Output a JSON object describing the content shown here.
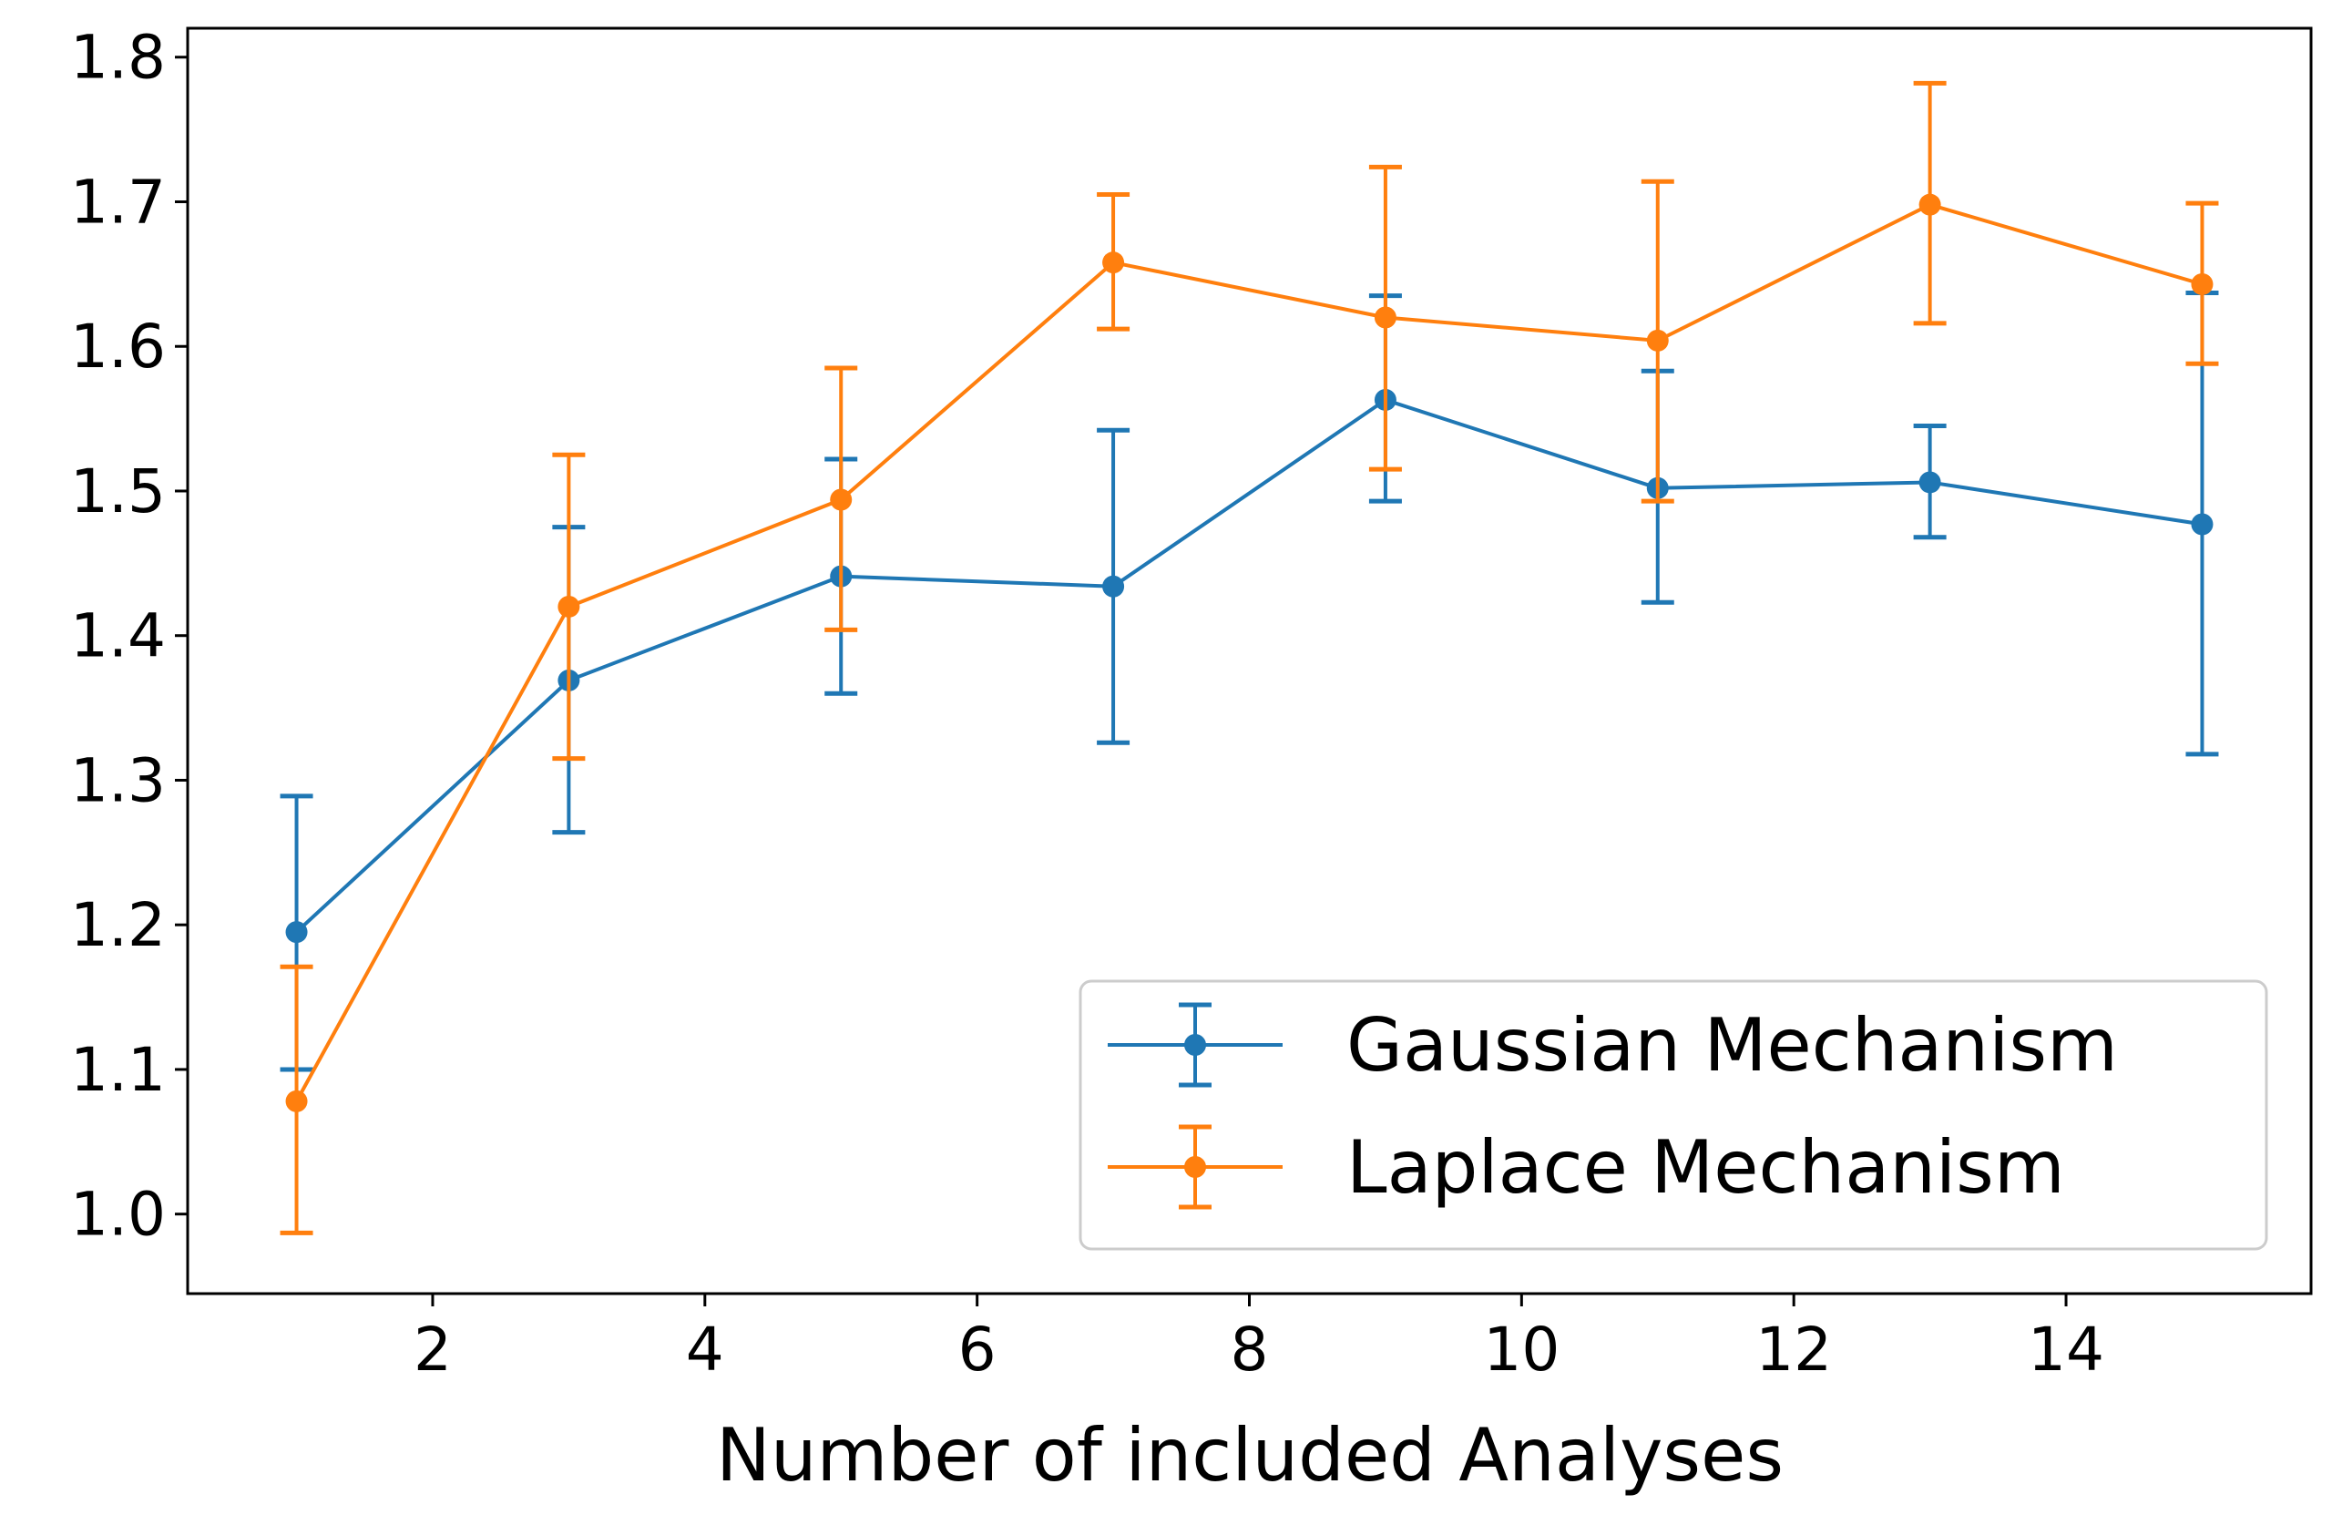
{
  "chart_data": {
    "type": "line",
    "title": "",
    "xlabel": "Number of included Analyses",
    "ylabel": "",
    "xlim": [
      0.2,
      15.8
    ],
    "ylim": [
      0.945,
      1.82
    ],
    "x_ticks": [
      2,
      4,
      6,
      8,
      10,
      12,
      14
    ],
    "y_ticks": [
      1.0,
      1.1,
      1.2,
      1.3,
      1.4,
      1.5,
      1.6,
      1.7,
      1.8
    ],
    "grid": false,
    "legend_position": "lower-right",
    "x": [
      1,
      3,
      5,
      7,
      9,
      11,
      13,
      15
    ],
    "series": [
      {
        "name": "Gaussian Mechanism",
        "color": "#1f77b4",
        "values": [
          1.195,
          1.369,
          1.441,
          1.434,
          1.563,
          1.502,
          1.506,
          1.477
        ],
        "err_low": [
          1.1,
          1.264,
          1.36,
          1.326,
          1.493,
          1.423,
          1.468,
          1.318
        ],
        "err_high": [
          1.289,
          1.475,
          1.522,
          1.542,
          1.635,
          1.583,
          1.545,
          1.637
        ]
      },
      {
        "name": "Laplace Mechanism",
        "color": "#ff7f0e",
        "values": [
          1.078,
          1.42,
          1.494,
          1.658,
          1.62,
          1.604,
          1.698,
          1.643
        ],
        "err_low": [
          0.987,
          1.315,
          1.404,
          1.612,
          1.515,
          1.493,
          1.616,
          1.588
        ],
        "err_high": [
          1.171,
          1.525,
          1.585,
          1.705,
          1.724,
          1.714,
          1.782,
          1.699
        ]
      }
    ]
  }
}
